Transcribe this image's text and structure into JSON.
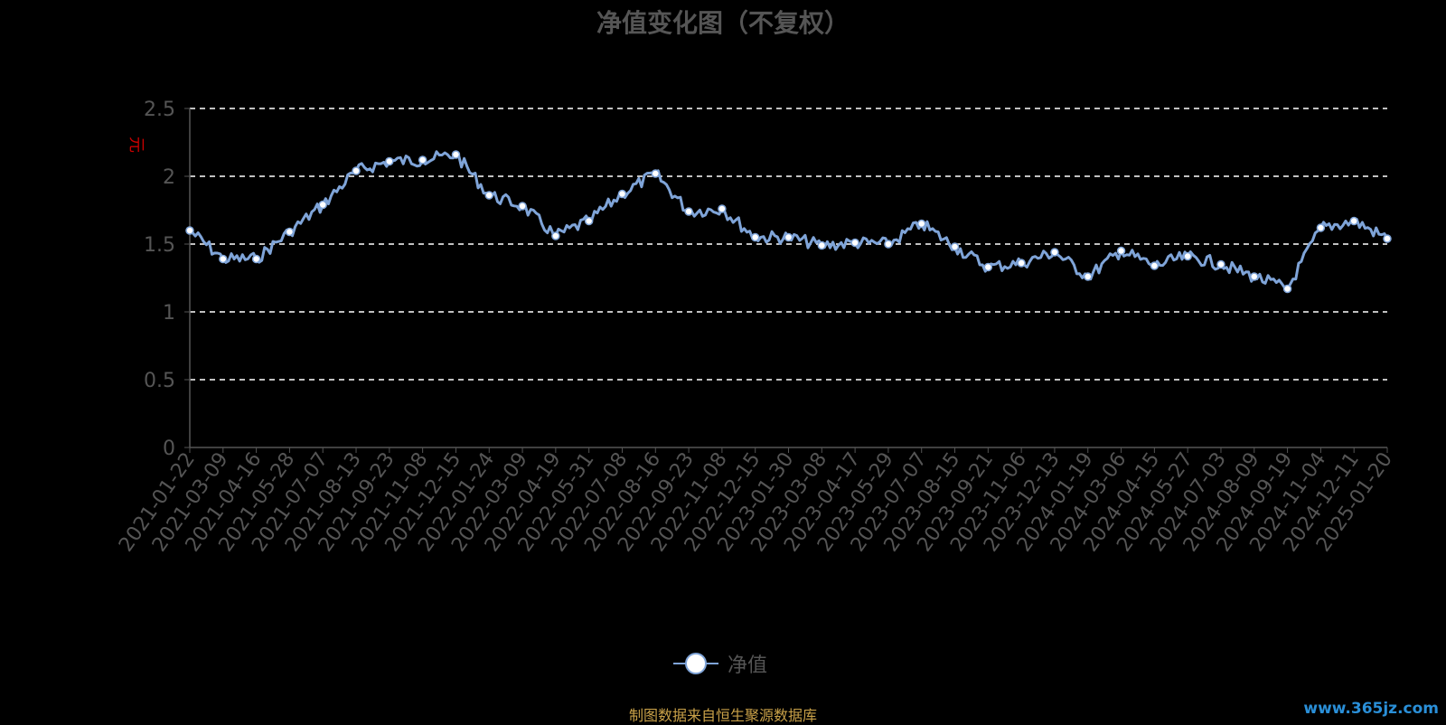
{
  "chart_data": {
    "type": "line",
    "title": "净值变化图（不复权）",
    "ylabel": "元",
    "ylim": [
      0,
      2.5
    ],
    "y_ticks": [
      "0",
      "0.5",
      "1",
      "1.5",
      "2",
      "2.5"
    ],
    "grid": true,
    "legend_position": "bottom",
    "x_tick_labels": [
      "2021-01-22",
      "2021-03-09",
      "2021-04-16",
      "2021-05-28",
      "2021-07-07",
      "2021-08-13",
      "2021-09-23",
      "2021-11-08",
      "2021-12-15",
      "2022-01-24",
      "2022-03-09",
      "2022-04-19",
      "2022-05-31",
      "2022-07-08",
      "2022-08-16",
      "2022-09-23",
      "2022-11-08",
      "2022-12-15",
      "2023-01-30",
      "2023-03-08",
      "2023-04-17",
      "2023-05-29",
      "2023-07-07",
      "2023-08-15",
      "2023-09-21",
      "2023-11-06",
      "2023-12-13",
      "2024-01-19",
      "2024-03-06",
      "2024-04-15",
      "2024-05-27",
      "2024-07-03",
      "2024-08-09",
      "2024-09-19",
      "2024-11-04",
      "2024-12-11",
      "2025-01-20"
    ],
    "series": [
      {
        "name": "净值",
        "color": "#7fa4d8",
        "x": [
          "2021-01-22",
          "2021-03-09",
          "2021-04-16",
          "2021-05-28",
          "2021-07-07",
          "2021-08-13",
          "2021-09-23",
          "2021-11-08",
          "2021-12-15",
          "2022-01-24",
          "2022-03-09",
          "2022-04-19",
          "2022-05-31",
          "2022-07-08",
          "2022-08-16",
          "2022-09-23",
          "2022-11-08",
          "2022-12-15",
          "2023-01-30",
          "2023-03-08",
          "2023-04-17",
          "2023-05-29",
          "2023-07-07",
          "2023-08-15",
          "2023-09-21",
          "2023-11-06",
          "2023-12-13",
          "2024-01-19",
          "2024-03-06",
          "2024-04-15",
          "2024-05-27",
          "2024-07-03",
          "2024-08-09",
          "2024-09-19",
          "2024-11-04",
          "2024-12-11",
          "2025-01-20"
        ],
        "values": [
          1.6,
          1.39,
          1.39,
          1.59,
          1.79,
          2.04,
          2.11,
          2.12,
          2.16,
          1.86,
          1.78,
          1.56,
          1.67,
          1.87,
          2.02,
          1.74,
          1.76,
          1.55,
          1.55,
          1.49,
          1.51,
          1.5,
          1.65,
          1.48,
          1.33,
          1.36,
          1.44,
          1.26,
          1.45,
          1.34,
          1.41,
          1.35,
          1.26,
          1.17,
          1.62,
          1.67,
          1.54
        ]
      }
    ]
  },
  "legend": {
    "label": "净值"
  },
  "source_note": "制图数据来自恒生聚源数据库",
  "watermark": "www.365jz.com"
}
